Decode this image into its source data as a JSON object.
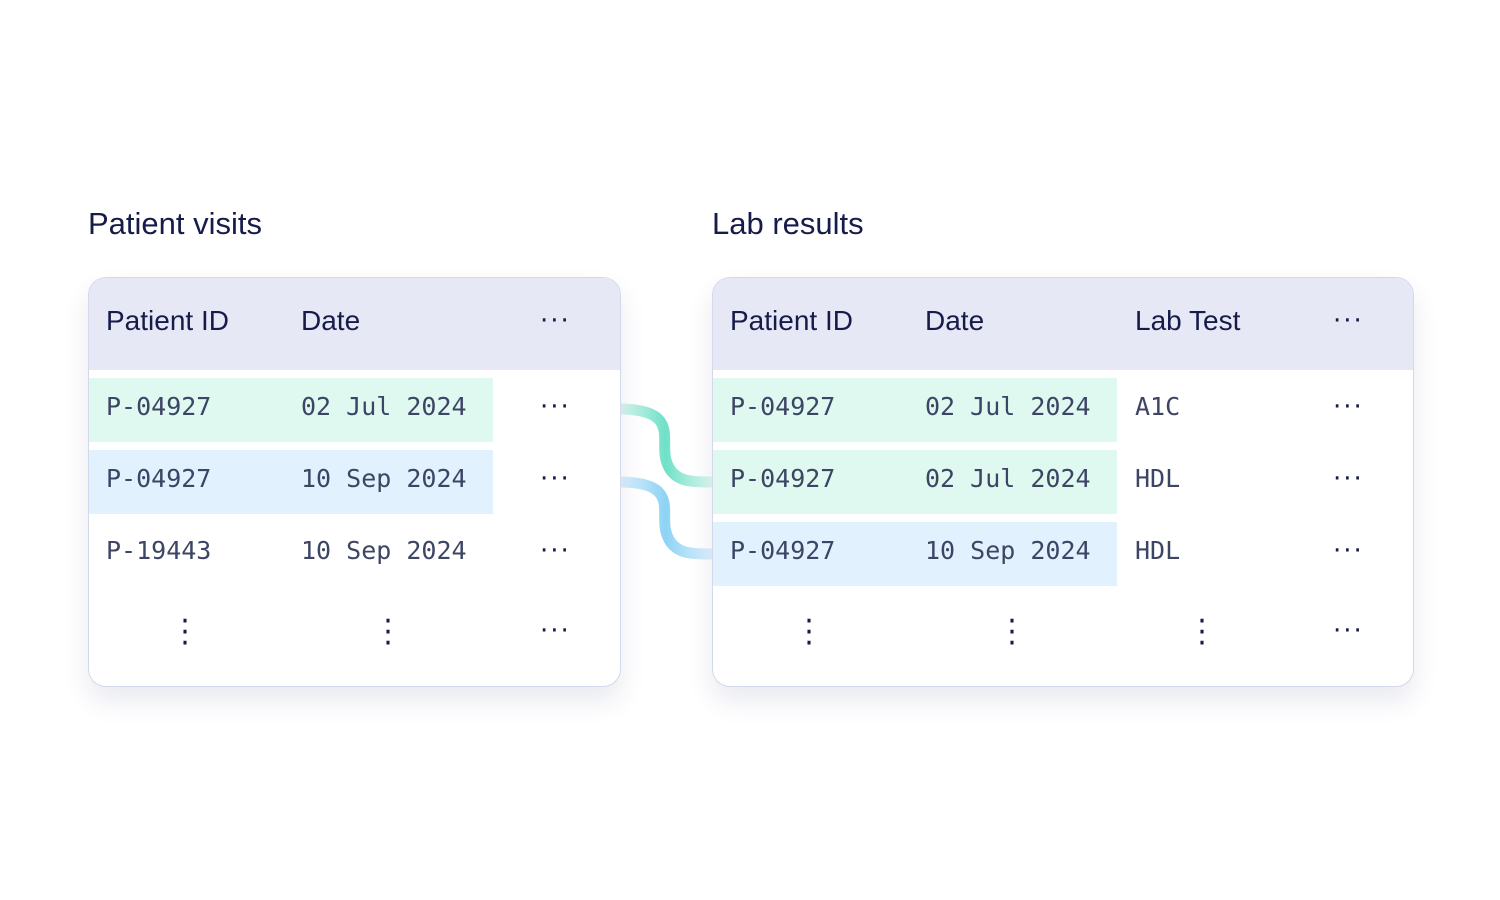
{
  "left_panel": {
    "title": "Patient visits",
    "header": {
      "patient_id": "Patient ID",
      "date": "Date",
      "more": "···"
    },
    "rows": [
      {
        "patient_id": "P-04927",
        "date": "02 Jul 2024",
        "more": "···",
        "highlight": "green"
      },
      {
        "patient_id": "P-04927",
        "date": "10 Sep 2024",
        "more": "···",
        "highlight": "blue"
      },
      {
        "patient_id": "P-19443",
        "date": "10 Sep 2024",
        "more": "···",
        "highlight": "none"
      }
    ],
    "continuation": {
      "more": "···"
    }
  },
  "right_panel": {
    "title": "Lab results",
    "header": {
      "patient_id": "Patient ID",
      "date": "Date",
      "lab_test": "Lab Test",
      "more": "···"
    },
    "rows": [
      {
        "patient_id": "P-04927",
        "date": "02 Jul 2024",
        "lab_test": "A1C",
        "more": "···",
        "highlight": "green"
      },
      {
        "patient_id": "P-04927",
        "date": "02 Jul 2024",
        "lab_test": "HDL",
        "more": "···",
        "highlight": "green"
      },
      {
        "patient_id": "P-04927",
        "date": "10 Sep 2024",
        "lab_test": "HDL",
        "more": "···",
        "highlight": "blue"
      }
    ],
    "continuation": {
      "more": "···"
    }
  },
  "links": [
    {
      "from_row": 0,
      "to_row": 0,
      "color": "#7fe3cf"
    },
    {
      "from_row": 0,
      "to_row": 1,
      "color": "#7fe3cf"
    },
    {
      "from_row": 1,
      "to_row": 2,
      "color": "#9ed6f5"
    }
  ],
  "colors": {
    "highlight_green": "#dff8f0",
    "highlight_blue": "#e1f1fd",
    "header_bg": "#e6e8f5",
    "text_dark": "#161b4a"
  }
}
